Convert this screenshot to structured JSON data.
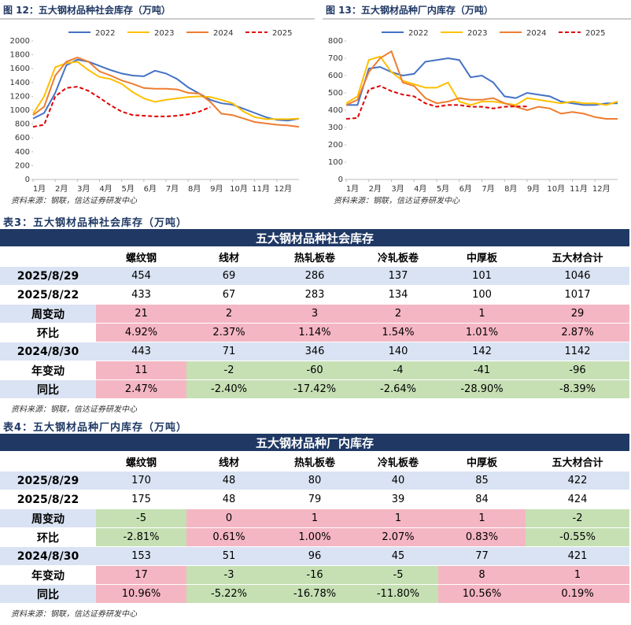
{
  "chart_data": [
    {
      "type": "line",
      "title": "图 12：五大钢材品种社会库存（万吨）",
      "source": "资料来源：钢联，信达证券研发中心",
      "x": [
        0,
        0.5,
        1,
        1.5,
        2,
        2.5,
        3,
        3.5,
        4,
        4.5,
        5,
        5.5,
        6,
        6.5,
        7,
        7.5,
        8,
        8.5,
        9,
        9.5,
        10,
        10.5,
        11,
        11.5,
        12
      ],
      "xlim": [
        0,
        12
      ],
      "xticks": [
        {
          "value": 0,
          "label": "1月"
        },
        {
          "value": 1,
          "label": "2月"
        },
        {
          "value": 2,
          "label": "3月"
        },
        {
          "value": 3,
          "label": "4月"
        },
        {
          "value": 4,
          "label": "5月"
        },
        {
          "value": 5,
          "label": "6月"
        },
        {
          "value": 6,
          "label": "7月"
        },
        {
          "value": 7,
          "label": "8月"
        },
        {
          "value": 8,
          "label": "9月"
        },
        {
          "value": 9,
          "label": "10月"
        },
        {
          "value": 10,
          "label": "11月"
        },
        {
          "value": 11,
          "label": "12月"
        }
      ],
      "ylim": [
        0,
        2000
      ],
      "yticks": [
        0,
        200,
        400,
        600,
        800,
        1000,
        1200,
        1400,
        1600,
        1800,
        2000
      ],
      "series": [
        {
          "name": "2022",
          "color": "#4472c4",
          "style": "solid",
          "values": [
            880,
            960,
            1250,
            1650,
            1730,
            1700,
            1640,
            1580,
            1530,
            1500,
            1490,
            1570,
            1530,
            1450,
            1330,
            1240,
            1150,
            1100,
            1080,
            1020,
            960,
            900,
            860,
            850,
            880
          ]
        },
        {
          "name": "2023",
          "color": "#ffc000",
          "style": "solid",
          "values": [
            950,
            1200,
            1620,
            1680,
            1700,
            1580,
            1480,
            1450,
            1380,
            1260,
            1170,
            1120,
            1150,
            1170,
            1190,
            1200,
            1190,
            1150,
            1100,
            980,
            900,
            870,
            870,
            870,
            880
          ]
        },
        {
          "name": "2024",
          "color": "#ed7d31",
          "style": "solid",
          "values": [
            930,
            1050,
            1500,
            1700,
            1760,
            1700,
            1560,
            1500,
            1430,
            1380,
            1320,
            1310,
            1310,
            1300,
            1250,
            1240,
            1120,
            950,
            930,
            880,
            830,
            810,
            790,
            780,
            760
          ]
        },
        {
          "name": "2025",
          "color": "#e00000",
          "style": "dashed",
          "values": [
            760,
            790,
            1200,
            1320,
            1340,
            1280,
            1180,
            1070,
            980,
            930,
            920,
            910,
            910,
            920,
            940,
            980,
            1046,
            null,
            null,
            null,
            null,
            null,
            null,
            null,
            null
          ]
        }
      ]
    },
    {
      "type": "line",
      "title": "图 13：五大钢材品种厂内库存（万吨）",
      "source": "资料来源：钢联，信达证券研发中心",
      "x": [
        0,
        0.5,
        1,
        1.5,
        2,
        2.5,
        3,
        3.5,
        4,
        4.5,
        5,
        5.5,
        6,
        6.5,
        7,
        7.5,
        8,
        8.5,
        9,
        9.5,
        10,
        10.5,
        11,
        11.5,
        12
      ],
      "xlim": [
        0,
        12
      ],
      "xticks": [
        {
          "value": 0,
          "label": "1月"
        },
        {
          "value": 1,
          "label": "2月"
        },
        {
          "value": 2,
          "label": "3月"
        },
        {
          "value": 3,
          "label": "4月"
        },
        {
          "value": 4,
          "label": "5月"
        },
        {
          "value": 5,
          "label": "6月"
        },
        {
          "value": 6,
          "label": "7月"
        },
        {
          "value": 7,
          "label": "8月"
        },
        {
          "value": 8,
          "label": "9月"
        },
        {
          "value": 9,
          "label": "10月"
        },
        {
          "value": 10,
          "label": "11月"
        },
        {
          "value": 11,
          "label": "12月"
        }
      ],
      "ylim": [
        0,
        800
      ],
      "yticks": [
        0,
        100,
        200,
        300,
        400,
        500,
        600,
        700,
        800
      ],
      "series": [
        {
          "name": "2022",
          "color": "#4472c4",
          "style": "solid",
          "values": [
            430,
            430,
            640,
            650,
            620,
            600,
            610,
            680,
            690,
            700,
            690,
            590,
            600,
            560,
            480,
            470,
            500,
            490,
            480,
            450,
            440,
            430,
            430,
            440,
            440
          ]
        },
        {
          "name": "2023",
          "color": "#ffc000",
          "style": "solid",
          "values": [
            440,
            480,
            690,
            710,
            620,
            570,
            550,
            530,
            530,
            560,
            450,
            430,
            450,
            450,
            440,
            430,
            470,
            460,
            450,
            440,
            450,
            440,
            440,
            430,
            450
          ]
        },
        {
          "name": "2024",
          "color": "#ed7d31",
          "style": "solid",
          "values": [
            430,
            460,
            620,
            700,
            740,
            560,
            540,
            470,
            440,
            450,
            470,
            460,
            460,
            470,
            440,
            420,
            400,
            420,
            410,
            380,
            390,
            380,
            360,
            350,
            350
          ]
        },
        {
          "name": "2025",
          "color": "#e00000",
          "style": "dashed",
          "values": [
            350,
            355,
            520,
            540,
            510,
            490,
            480,
            440,
            420,
            430,
            430,
            420,
            420,
            410,
            420,
            422,
            422,
            null,
            null,
            null,
            null,
            null,
            null,
            null,
            null
          ]
        }
      ]
    }
  ],
  "tables": [
    {
      "title": "表3：五大钢材品种社会库存（万吨）",
      "header": "五大钢材品种社会库存",
      "columns": [
        "螺纹钢",
        "线材",
        "热轧板卷",
        "冷轧板卷",
        "中厚板",
        "五大材合计"
      ],
      "rows": [
        [
          "2025/8/29",
          "454",
          "69",
          "286",
          "137",
          "101",
          "1046"
        ],
        [
          "2025/8/22",
          "433",
          "67",
          "283",
          "134",
          "100",
          "1017"
        ],
        [
          "周变动",
          "21",
          "2",
          "3",
          "2",
          "1",
          "29"
        ],
        [
          "环比",
          "4.92%",
          "2.37%",
          "1.14%",
          "1.54%",
          "1.01%",
          "2.87%"
        ],
        [
          "2024/8/30",
          "443",
          "71",
          "346",
          "140",
          "142",
          "1142"
        ],
        [
          "年变动",
          "11",
          "-2",
          "-60",
          "-4",
          "-41",
          "-96"
        ],
        [
          "同比",
          "2.47%",
          "-2.40%",
          "-17.42%",
          "-2.64%",
          "-28.90%",
          "-8.39%"
        ]
      ],
      "source": "资料来源：钢联，信达证券研发中心"
    },
    {
      "title": "表4：五大钢材品种厂内库存（万吨）",
      "header": "五大钢材品种厂内库存",
      "columns": [
        "螺纹钢",
        "线材",
        "热轧板卷",
        "冷轧板卷",
        "中厚板",
        "五大材合计"
      ],
      "rows": [
        [
          "2025/8/29",
          "170",
          "48",
          "80",
          "40",
          "85",
          "422"
        ],
        [
          "2025/8/22",
          "175",
          "48",
          "79",
          "39",
          "84",
          "424"
        ],
        [
          "周变动",
          "-5",
          "0",
          "1",
          "1",
          "1",
          "-2"
        ],
        [
          "环比",
          "-2.81%",
          "0.61%",
          "1.00%",
          "2.07%",
          "0.83%",
          "-0.55%"
        ],
        [
          "2024/8/30",
          "153",
          "51",
          "96",
          "45",
          "77",
          "421"
        ],
        [
          "年变动",
          "17",
          "-3",
          "-16",
          "-5",
          "8",
          "1"
        ],
        [
          "同比",
          "10.96%",
          "-5.22%",
          "-16.78%",
          "-11.80%",
          "10.56%",
          "0.19%"
        ]
      ],
      "source": "资料来源：钢联，信达证券研发中心"
    }
  ]
}
